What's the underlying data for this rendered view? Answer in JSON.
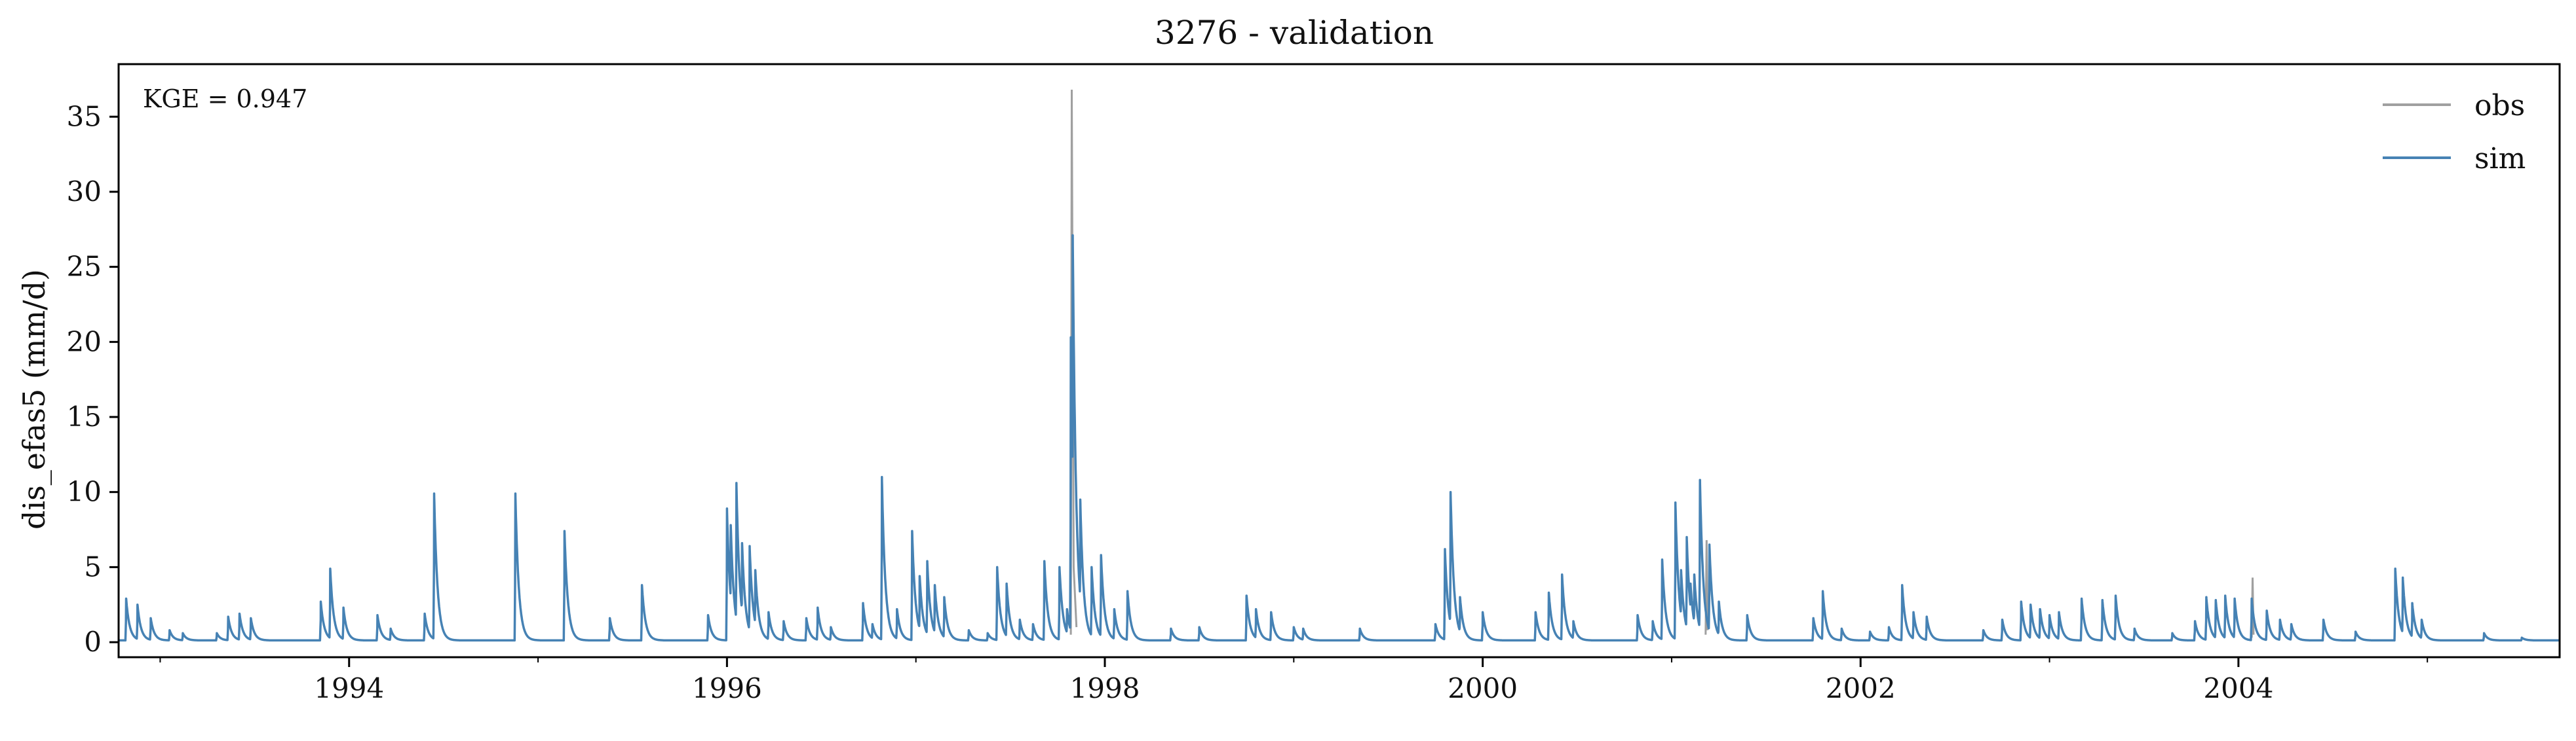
{
  "chart_data": {
    "type": "line",
    "title": "3276 - validation",
    "xlabel": "",
    "ylabel": "dis_efas5 (mm/d)",
    "annotation": "KGE = 0.947",
    "legend": {
      "placement": "top-right",
      "entries": [
        "obs",
        "sim"
      ]
    },
    "grid": false,
    "xlim": [
      1992.78,
      2005.7
    ],
    "ylim": [
      -1,
      38.5
    ],
    "x_ticks": [
      1994,
      1996,
      1998,
      2000,
      2002,
      2004
    ],
    "x_tick_labels": [
      "1994",
      "1996",
      "1998",
      "2000",
      "2002",
      "2004"
    ],
    "y_ticks": [
      0,
      5,
      10,
      15,
      20,
      25,
      30,
      35
    ],
    "y_tick_labels": [
      "0",
      "5",
      "10",
      "15",
      "20",
      "25",
      "30",
      "35"
    ],
    "series": [
      {
        "name": "obs",
        "color": "#a0a0a0",
        "x": [
          1997.82,
          1997.825,
          1997.83,
          1997.835,
          1997.85,
          2001.18,
          2001.185,
          2001.19,
          2004.07,
          2004.075,
          2004.08
        ],
        "values": [
          0.5,
          36.8,
          20.0,
          5.0,
          1.0,
          0.5,
          6.8,
          0.8,
          0.3,
          4.3,
          0.5
        ]
      },
      {
        "name": "sim",
        "color": "#4682b4",
        "peaks": [
          [
            1992.82,
            2.9
          ],
          [
            1992.88,
            2.5
          ],
          [
            1992.95,
            1.6
          ],
          [
            1993.05,
            0.8
          ],
          [
            1993.12,
            0.6
          ],
          [
            1993.3,
            0.6
          ],
          [
            1993.36,
            1.7
          ],
          [
            1993.42,
            1.9
          ],
          [
            1993.48,
            1.6
          ],
          [
            1993.85,
            2.7
          ],
          [
            1993.9,
            4.9
          ],
          [
            1993.97,
            2.3
          ],
          [
            1994.15,
            1.8
          ],
          [
            1994.22,
            0.9
          ],
          [
            1994.4,
            1.9
          ],
          [
            1994.45,
            9.9
          ],
          [
            1994.88,
            9.9
          ],
          [
            1995.14,
            7.4
          ],
          [
            1995.38,
            1.6
          ],
          [
            1995.55,
            3.8
          ],
          [
            1995.9,
            1.8
          ],
          [
            1996.0,
            8.9
          ],
          [
            1996.02,
            7.8
          ],
          [
            1996.05,
            10.6
          ],
          [
            1996.08,
            6.6
          ],
          [
            1996.12,
            6.4
          ],
          [
            1996.15,
            4.8
          ],
          [
            1996.22,
            2.0
          ],
          [
            1996.3,
            1.4
          ],
          [
            1996.42,
            1.6
          ],
          [
            1996.48,
            2.3
          ],
          [
            1996.55,
            1.0
          ],
          [
            1996.72,
            2.6
          ],
          [
            1996.77,
            1.2
          ],
          [
            1996.82,
            11.0
          ],
          [
            1996.9,
            2.2
          ],
          [
            1996.98,
            7.4
          ],
          [
            1997.02,
            4.4
          ],
          [
            1997.06,
            5.4
          ],
          [
            1997.1,
            3.8
          ],
          [
            1997.15,
            3.0
          ],
          [
            1997.28,
            0.8
          ],
          [
            1997.38,
            0.6
          ],
          [
            1997.43,
            5.0
          ],
          [
            1997.48,
            3.9
          ],
          [
            1997.55,
            1.5
          ],
          [
            1997.62,
            1.2
          ],
          [
            1997.68,
            5.4
          ],
          [
            1997.76,
            5.0
          ],
          [
            1997.8,
            2.2
          ],
          [
            1997.82,
            20.3
          ],
          [
            1997.83,
            27.1
          ],
          [
            1997.87,
            9.5
          ],
          [
            1997.93,
            5.0
          ],
          [
            1997.98,
            5.8
          ],
          [
            2000.0,
            2.0
          ],
          [
            1998.05,
            2.2
          ],
          [
            1998.12,
            3.4
          ],
          [
            1998.35,
            0.9
          ],
          [
            1998.5,
            1.0
          ],
          [
            1998.75,
            3.1
          ],
          [
            1998.8,
            2.2
          ],
          [
            1998.88,
            2.0
          ],
          [
            1999.0,
            1.0
          ],
          [
            1999.05,
            0.9
          ],
          [
            1999.35,
            0.9
          ],
          [
            1999.75,
            1.2
          ],
          [
            1999.8,
            6.2
          ],
          [
            1999.83,
            10.0
          ],
          [
            1999.88,
            3.0
          ],
          [
            2000.28,
            2.0
          ],
          [
            2000.35,
            3.3
          ],
          [
            2000.42,
            4.5
          ],
          [
            2000.48,
            1.4
          ],
          [
            2000.82,
            1.8
          ],
          [
            2000.9,
            1.4
          ],
          [
            2000.95,
            5.5
          ],
          [
            2001.02,
            9.3
          ],
          [
            2001.05,
            4.8
          ],
          [
            2001.08,
            7.0
          ],
          [
            2001.1,
            3.9
          ],
          [
            2001.12,
            4.5
          ],
          [
            2001.15,
            10.8
          ],
          [
            2001.2,
            6.5
          ],
          [
            2001.25,
            2.7
          ],
          [
            2001.4,
            1.8
          ],
          [
            2001.75,
            1.6
          ],
          [
            2001.8,
            3.4
          ],
          [
            2001.9,
            0.9
          ],
          [
            2002.05,
            0.7
          ],
          [
            2002.15,
            1.0
          ],
          [
            2002.22,
            3.8
          ],
          [
            2002.28,
            2.0
          ],
          [
            2002.35,
            1.7
          ],
          [
            2002.65,
            0.8
          ],
          [
            2002.75,
            1.5
          ],
          [
            2002.85,
            2.7
          ],
          [
            2002.9,
            2.5
          ],
          [
            2002.95,
            2.2
          ],
          [
            2003.0,
            1.8
          ],
          [
            2003.05,
            2.0
          ],
          [
            2003.17,
            2.9
          ],
          [
            2003.28,
            2.8
          ],
          [
            2003.35,
            3.1
          ],
          [
            2003.45,
            0.9
          ],
          [
            2003.65,
            0.6
          ],
          [
            2003.77,
            1.4
          ],
          [
            2003.83,
            3.0
          ],
          [
            2003.88,
            2.8
          ],
          [
            2003.93,
            3.1
          ],
          [
            2003.98,
            2.9
          ],
          [
            2004.07,
            2.9
          ],
          [
            2004.15,
            2.1
          ],
          [
            2004.22,
            1.5
          ],
          [
            2004.28,
            1.2
          ],
          [
            2004.45,
            1.5
          ],
          [
            2004.62,
            0.7
          ],
          [
            2004.83,
            4.9
          ],
          [
            2004.87,
            4.3
          ],
          [
            2004.92,
            2.6
          ],
          [
            2004.97,
            1.5
          ],
          [
            2005.3,
            0.6
          ],
          [
            2005.5,
            0.3
          ]
        ]
      }
    ]
  }
}
